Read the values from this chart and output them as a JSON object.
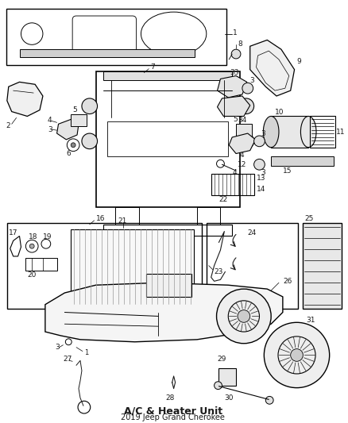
{
  "title": "A/C & Heater Unit",
  "subtitle": "2019 Jeep Grand Cherokee",
  "bg": "#ffffff",
  "lc": "#1a1a1a",
  "fig_w": 4.38,
  "fig_h": 5.33,
  "dpi": 100,
  "label_fs": 6.5
}
